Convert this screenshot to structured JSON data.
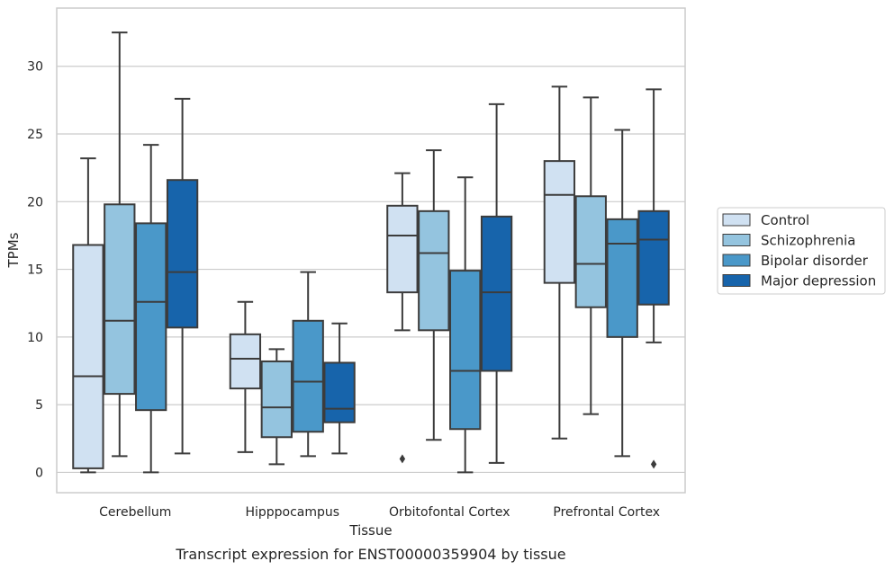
{
  "chart_data": {
    "type": "boxplot",
    "title": "",
    "caption": "Transcript expression for ENST00000359904 by tissue",
    "xlabel": "Tissue",
    "ylabel": "TPMs",
    "ylim": [
      -1.5,
      34.3
    ],
    "yticks": [
      0,
      5,
      10,
      15,
      20,
      25,
      30
    ],
    "grid": "horizontal",
    "legend_position": "right",
    "categories": [
      "Cerebellum",
      "Hipppocampus",
      "Orbitofontal Cortex",
      "Prefrontal Cortex"
    ],
    "series": [
      {
        "name": "Control",
        "color": "#d0e1f2",
        "boxes": [
          {
            "whisker_low": 0.0,
            "q1": 0.3,
            "median": 7.1,
            "q3": 16.8,
            "whisker_high": 23.2,
            "outliers": []
          },
          {
            "whisker_low": 1.5,
            "q1": 6.2,
            "median": 8.4,
            "q3": 10.2,
            "whisker_high": 12.6,
            "outliers": []
          },
          {
            "whisker_low": 10.5,
            "q1": 13.3,
            "median": 17.5,
            "q3": 19.7,
            "whisker_high": 22.1,
            "outliers": [
              1.0
            ]
          },
          {
            "whisker_low": 2.5,
            "q1": 14.0,
            "median": 20.5,
            "q3": 23.0,
            "whisker_high": 28.5,
            "outliers": []
          }
        ]
      },
      {
        "name": "Schizophrenia",
        "color": "#94c4df",
        "boxes": [
          {
            "whisker_low": 1.2,
            "q1": 5.8,
            "median": 11.2,
            "q3": 19.8,
            "whisker_high": 32.5,
            "outliers": []
          },
          {
            "whisker_low": 0.6,
            "q1": 2.6,
            "median": 4.8,
            "q3": 8.2,
            "whisker_high": 9.1,
            "outliers": []
          },
          {
            "whisker_low": 2.4,
            "q1": 10.5,
            "median": 16.2,
            "q3": 19.3,
            "whisker_high": 23.8,
            "outliers": []
          },
          {
            "whisker_low": 4.3,
            "q1": 12.2,
            "median": 15.4,
            "q3": 20.4,
            "whisker_high": 27.7,
            "outliers": []
          }
        ]
      },
      {
        "name": "Bipolar disorder",
        "color": "#4a98c9",
        "boxes": [
          {
            "whisker_low": 0.0,
            "q1": 4.6,
            "median": 12.6,
            "q3": 18.4,
            "whisker_high": 24.2,
            "outliers": []
          },
          {
            "whisker_low": 1.2,
            "q1": 3.0,
            "median": 6.7,
            "q3": 11.2,
            "whisker_high": 14.8,
            "outliers": []
          },
          {
            "whisker_low": 0.0,
            "q1": 3.2,
            "median": 7.5,
            "q3": 14.9,
            "whisker_high": 21.8,
            "outliers": []
          },
          {
            "whisker_low": 1.2,
            "q1": 10.0,
            "median": 16.9,
            "q3": 18.7,
            "whisker_high": 25.3,
            "outliers": []
          }
        ]
      },
      {
        "name": "Major depression",
        "color": "#1764ab",
        "boxes": [
          {
            "whisker_low": 1.4,
            "q1": 10.7,
            "median": 14.8,
            "q3": 21.6,
            "whisker_high": 27.6,
            "outliers": []
          },
          {
            "whisker_low": 1.4,
            "q1": 3.7,
            "median": 4.7,
            "q3": 8.1,
            "whisker_high": 11.0,
            "outliers": []
          },
          {
            "whisker_low": 0.7,
            "q1": 7.5,
            "median": 13.3,
            "q3": 18.9,
            "whisker_high": 27.2,
            "outliers": []
          },
          {
            "whisker_low": 9.6,
            "q1": 12.4,
            "median": 17.2,
            "q3": 19.3,
            "whisker_high": 28.3,
            "outliers": [
              0.6
            ]
          }
        ]
      }
    ]
  }
}
